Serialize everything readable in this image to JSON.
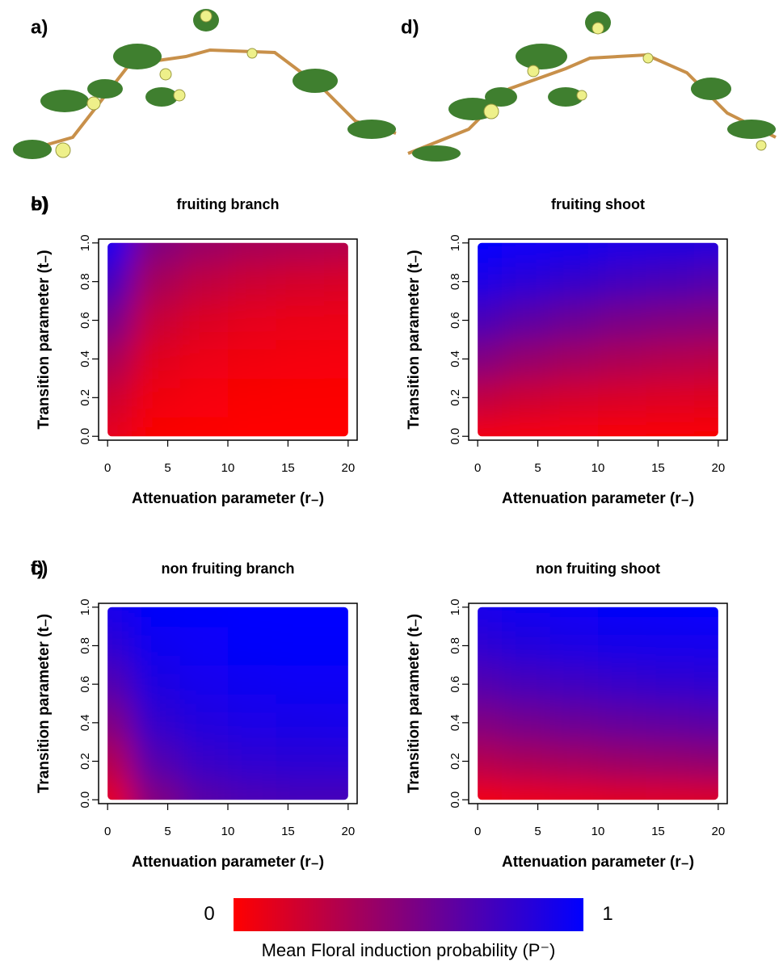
{
  "figure": {
    "panel_labels": [
      "a)",
      "d)"
    ]
  },
  "chart_data": [
    {
      "type": "heatmap",
      "panel_label": "b)",
      "title": "fruiting branch",
      "xlabel": "Attenuation parameter (r₋)",
      "ylabel": "Transition parameter (t₋)",
      "x": [
        0,
        4,
        8,
        12,
        16,
        20
      ],
      "y": [
        0,
        0.2,
        0.4,
        0.6,
        0.8,
        1.0
      ],
      "values": [
        [
          0.1,
          0.02,
          0.01,
          0,
          0,
          0
        ],
        [
          0.2,
          0.06,
          0.03,
          0.02,
          0.01,
          0.01
        ],
        [
          0.35,
          0.12,
          0.07,
          0.05,
          0.04,
          0.03
        ],
        [
          0.55,
          0.22,
          0.14,
          0.1,
          0.08,
          0.07
        ],
        [
          0.75,
          0.35,
          0.25,
          0.2,
          0.17,
          0.15
        ],
        [
          0.95,
          0.5,
          0.4,
          0.35,
          0.32,
          0.3
        ]
      ],
      "xlim": [
        -0.75,
        20.75
      ],
      "ylim": [
        -0.02,
        1.02
      ],
      "xticks": [
        0,
        5,
        10,
        15,
        20
      ],
      "yticks": [
        {
          "value": 0,
          "label": "0.0"
        },
        0.2,
        0.4,
        0.6,
        0.8,
        {
          "value": 1,
          "label": "1.0"
        }
      ]
    },
    {
      "type": "heatmap",
      "panel_label": "c)",
      "title": "non fruiting branch",
      "xlabel": "Attenuation parameter (r₋)",
      "ylabel": "Transition parameter (t₋)",
      "x": [
        0,
        4,
        8,
        12,
        16,
        20
      ],
      "y": [
        0,
        0.2,
        0.4,
        0.6,
        0.8,
        1.0
      ],
      "values": [
        [
          0.1,
          0.5,
          0.65,
          0.7,
          0.72,
          0.72
        ],
        [
          0.3,
          0.68,
          0.78,
          0.82,
          0.83,
          0.84
        ],
        [
          0.5,
          0.8,
          0.87,
          0.9,
          0.91,
          0.92
        ],
        [
          0.68,
          0.88,
          0.93,
          0.95,
          0.96,
          0.96
        ],
        [
          0.82,
          0.94,
          0.97,
          0.98,
          0.99,
          0.99
        ],
        [
          0.92,
          0.98,
          0.99,
          1,
          1,
          1
        ]
      ],
      "xlim": [
        -0.75,
        20.75
      ],
      "ylim": [
        -0.02,
        1.02
      ],
      "xticks": [
        0,
        5,
        10,
        15,
        20
      ],
      "yticks": [
        {
          "value": 0,
          "label": "0.0"
        },
        0.2,
        0.4,
        0.6,
        0.8,
        {
          "value": 1,
          "label": "1.0"
        }
      ]
    },
    {
      "type": "heatmap",
      "panel_label": "e)",
      "title": "fruiting shoot",
      "xlabel": "Attenuation parameter (r₋)",
      "ylabel": "Transition parameter (t₋)",
      "x": [
        0,
        4,
        8,
        12,
        16,
        20
      ],
      "y": [
        0,
        0.2,
        0.4,
        0.6,
        0.8,
        1.0
      ],
      "values": [
        [
          0.05,
          0.04,
          0.03,
          0.02,
          0.02,
          0.02
        ],
        [
          0.25,
          0.2,
          0.17,
          0.15,
          0.13,
          0.12
        ],
        [
          0.5,
          0.42,
          0.37,
          0.33,
          0.3,
          0.28
        ],
        [
          0.72,
          0.64,
          0.58,
          0.53,
          0.5,
          0.48
        ],
        [
          0.9,
          0.84,
          0.79,
          0.74,
          0.71,
          0.68
        ],
        [
          1,
          0.97,
          0.94,
          0.9,
          0.88,
          0.86
        ]
      ],
      "xlim": [
        -0.75,
        20.75
      ],
      "ylim": [
        -0.02,
        1.02
      ],
      "xticks": [
        0,
        5,
        10,
        15,
        20
      ],
      "yticks": [
        {
          "value": 0,
          "label": "0.0"
        },
        0.2,
        0.4,
        0.6,
        0.8,
        {
          "value": 1,
          "label": "1.0"
        }
      ]
    },
    {
      "type": "heatmap",
      "panel_label": "f)",
      "title": "non fruiting shoot",
      "xlabel": "Attenuation parameter (r₋)",
      "ylabel": "Transition parameter (t₋)",
      "x": [
        0,
        4,
        8,
        12,
        16,
        20
      ],
      "y": [
        0,
        0.2,
        0.4,
        0.6,
        0.8,
        1.0
      ],
      "values": [
        [
          0.05,
          0.08,
          0.1,
          0.12,
          0.13,
          0.14
        ],
        [
          0.3,
          0.34,
          0.37,
          0.4,
          0.42,
          0.44
        ],
        [
          0.5,
          0.55,
          0.58,
          0.61,
          0.63,
          0.65
        ],
        [
          0.68,
          0.72,
          0.75,
          0.78,
          0.8,
          0.82
        ],
        [
          0.82,
          0.86,
          0.89,
          0.91,
          0.92,
          0.93
        ],
        [
          0.92,
          0.95,
          0.97,
          0.98,
          0.99,
          1
        ]
      ],
      "xlim": [
        -0.75,
        20.75
      ],
      "ylim": [
        -0.02,
        1.02
      ],
      "xticks": [
        0,
        5,
        10,
        15,
        20
      ],
      "yticks": [
        {
          "value": 0,
          "label": "0.0"
        },
        0.2,
        0.4,
        0.6,
        0.8,
        {
          "value": 1,
          "label": "1.0"
        }
      ]
    }
  ],
  "colorbar": {
    "colormap": [
      "#ff0000",
      "#0000ff"
    ],
    "ticks": [
      0,
      1
    ],
    "label": "Mean Floral induction probability (P⁻)"
  }
}
